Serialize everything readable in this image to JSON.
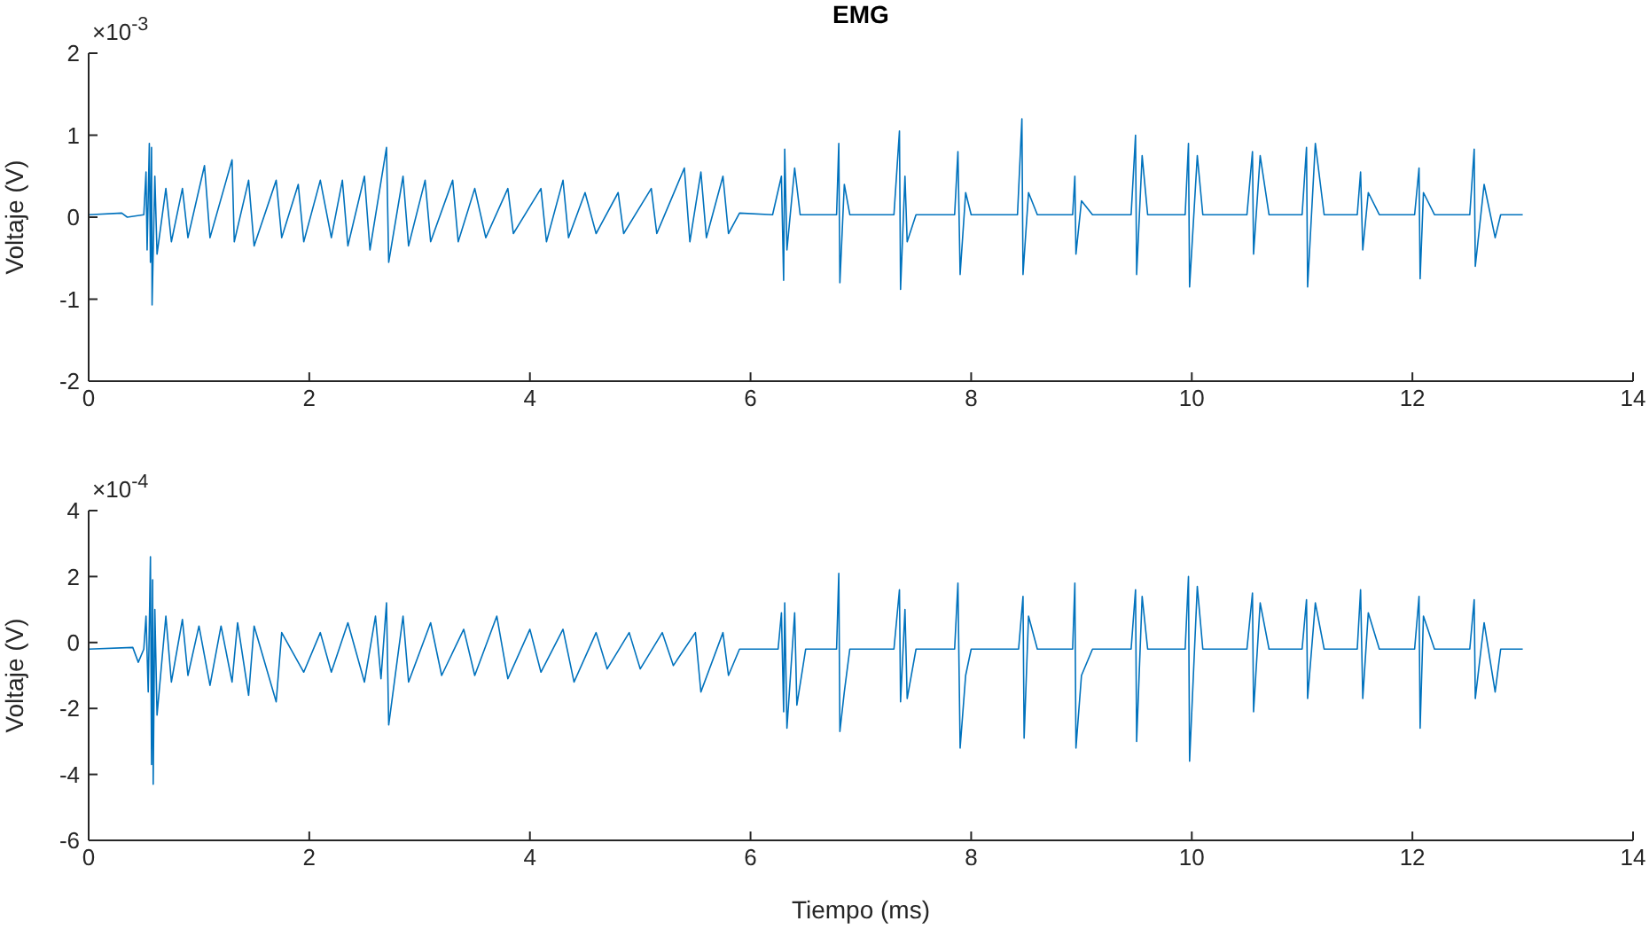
{
  "chart_data": [
    {
      "type": "line",
      "title": "EMG",
      "ylabel": "Voltaje (V)",
      "annotations": [
        "×10$^{-3}$"
      ],
      "xlim": [
        0,
        14
      ],
      "xticks": [
        0,
        2,
        4,
        6,
        8,
        10,
        12,
        14
      ],
      "ylim": [
        -2,
        2
      ],
      "yticks": [
        -2,
        -1,
        0,
        1,
        2
      ],
      "marker": "none",
      "series": [
        {
          "color": "#0072bd",
          "x": [
            0,
            0.3,
            0.35,
            0.5,
            0.52,
            0.53,
            0.55,
            0.56,
            0.57,
            0.575,
            0.6,
            0.62,
            0.7,
            0.75,
            0.85,
            0.9,
            1.05,
            1.1,
            1.3,
            1.32,
            1.45,
            1.5,
            1.7,
            1.75,
            1.9,
            1.95,
            2.1,
            2.2,
            2.3,
            2.35,
            2.5,
            2.55,
            2.7,
            2.72,
            2.85,
            2.9,
            3.05,
            3.1,
            3.3,
            3.35,
            3.5,
            3.6,
            3.8,
            3.85,
            4.1,
            4.15,
            4.3,
            4.35,
            4.5,
            4.6,
            4.8,
            4.85,
            5.1,
            5.15,
            5.4,
            5.45,
            5.55,
            5.6,
            5.75,
            5.8,
            5.9,
            6.2,
            6.28,
            6.3,
            6.31,
            6.33,
            6.4,
            6.45,
            6.78,
            6.8,
            6.81,
            6.85,
            6.9,
            7.3,
            7.35,
            7.36,
            7.4,
            7.42,
            7.5,
            7.85,
            7.88,
            7.9,
            7.95,
            8.0,
            8.42,
            8.46,
            8.47,
            8.52,
            8.6,
            8.92,
            8.94,
            8.95,
            9.0,
            9.1,
            9.45,
            9.49,
            9.5,
            9.55,
            9.6,
            9.94,
            9.97,
            9.98,
            10.05,
            10.1,
            10.5,
            10.55,
            10.56,
            10.62,
            10.7,
            11.0,
            11.04,
            11.05,
            11.12,
            11.2,
            11.5,
            11.53,
            11.55,
            11.6,
            11.7,
            12.02,
            12.06,
            12.07,
            12.1,
            12.2,
            12.52,
            12.56,
            12.57,
            12.65,
            12.75,
            12.8,
            13.0
          ],
          "values": [
            0.03,
            0.05,
            0.0,
            0.03,
            0.55,
            -0.4,
            0.9,
            -0.55,
            0.85,
            -1.07,
            0.5,
            -0.45,
            0.35,
            -0.3,
            0.35,
            -0.25,
            0.63,
            -0.25,
            0.7,
            -0.3,
            0.45,
            -0.35,
            0.45,
            -0.25,
            0.4,
            -0.3,
            0.45,
            -0.25,
            0.45,
            -0.35,
            0.5,
            -0.4,
            0.85,
            -0.55,
            0.5,
            -0.35,
            0.45,
            -0.3,
            0.45,
            -0.3,
            0.35,
            -0.25,
            0.35,
            -0.2,
            0.35,
            -0.3,
            0.45,
            -0.25,
            0.3,
            -0.2,
            0.3,
            -0.2,
            0.35,
            -0.2,
            0.6,
            -0.3,
            0.55,
            -0.25,
            0.5,
            -0.2,
            0.05,
            0.03,
            0.5,
            -0.77,
            0.83,
            -0.4,
            0.6,
            0.03,
            0.03,
            0.9,
            -0.8,
            0.4,
            0.03,
            0.03,
            1.05,
            -0.88,
            0.5,
            -0.3,
            0.03,
            0.03,
            0.8,
            -0.7,
            0.3,
            0.03,
            0.03,
            1.2,
            -0.7,
            0.3,
            0.03,
            0.03,
            0.5,
            -0.45,
            0.2,
            0.03,
            0.03,
            1.0,
            -0.7,
            0.75,
            0.03,
            0.03,
            0.9,
            -0.85,
            0.75,
            0.03,
            0.03,
            0.8,
            -0.45,
            0.75,
            0.03,
            0.03,
            0.85,
            -0.85,
            0.9,
            0.03,
            0.03,
            0.55,
            -0.4,
            0.3,
            0.03,
            0.03,
            0.6,
            -0.75,
            0.3,
            0.03,
            0.03,
            0.83,
            -0.6,
            0.4,
            -0.25,
            0.03,
            0.03
          ]
        }
      ]
    },
    {
      "type": "line",
      "xlabel": "Tiempo (ms)",
      "ylabel": "Voltaje (V)",
      "annotations": [
        "×10$^{-4}$"
      ],
      "xlim": [
        0,
        14
      ],
      "xticks": [
        0,
        2,
        4,
        6,
        8,
        10,
        12,
        14
      ],
      "ylim": [
        -6,
        4
      ],
      "yticks": [
        -6,
        -4,
        -2,
        0,
        2,
        4
      ],
      "marker": "none",
      "series": [
        {
          "color": "#0072bd",
          "x": [
            0,
            0.4,
            0.45,
            0.5,
            0.52,
            0.54,
            0.56,
            0.57,
            0.58,
            0.585,
            0.6,
            0.62,
            0.7,
            0.75,
            0.85,
            0.9,
            1.0,
            1.1,
            1.2,
            1.3,
            1.35,
            1.45,
            1.5,
            1.7,
            1.75,
            1.95,
            2.1,
            2.2,
            2.35,
            2.5,
            2.6,
            2.65,
            2.7,
            2.72,
            2.85,
            2.9,
            3.1,
            3.2,
            3.4,
            3.5,
            3.7,
            3.8,
            4.0,
            4.1,
            4.3,
            4.4,
            4.6,
            4.7,
            4.9,
            5.0,
            5.2,
            5.3,
            5.5,
            5.55,
            5.75,
            5.8,
            5.9,
            6.25,
            6.28,
            6.3,
            6.31,
            6.33,
            6.4,
            6.42,
            6.5,
            6.78,
            6.8,
            6.81,
            6.85,
            6.9,
            7.3,
            7.35,
            7.36,
            7.4,
            7.42,
            7.5,
            7.85,
            7.88,
            7.9,
            7.95,
            8.0,
            8.43,
            8.47,
            8.48,
            8.52,
            8.6,
            8.92,
            8.94,
            8.95,
            9.0,
            9.1,
            9.45,
            9.49,
            9.5,
            9.55,
            9.6,
            9.94,
            9.97,
            9.98,
            10.05,
            10.1,
            10.5,
            10.55,
            10.56,
            10.62,
            10.7,
            11.0,
            11.04,
            11.05,
            11.12,
            11.2,
            11.5,
            11.53,
            11.55,
            11.6,
            11.7,
            12.02,
            12.06,
            12.07,
            12.1,
            12.2,
            12.52,
            12.56,
            12.57,
            12.65,
            12.75,
            12.8,
            13.0
          ],
          "values": [
            -0.2,
            -0.15,
            -0.6,
            -0.2,
            0.8,
            -1.5,
            2.6,
            -3.7,
            1.9,
            -4.3,
            1.0,
            -2.2,
            0.8,
            -1.2,
            0.7,
            -1.0,
            0.5,
            -1.3,
            0.5,
            -1.2,
            0.6,
            -1.6,
            0.5,
            -1.8,
            0.3,
            -0.9,
            0.3,
            -0.9,
            0.6,
            -1.2,
            0.8,
            -1.1,
            1.2,
            -2.5,
            0.8,
            -1.2,
            0.6,
            -1.0,
            0.4,
            -1.0,
            0.8,
            -1.1,
            0.4,
            -0.9,
            0.4,
            -1.2,
            0.3,
            -0.8,
            0.3,
            -0.8,
            0.3,
            -0.7,
            0.3,
            -1.5,
            0.3,
            -1.0,
            -0.2,
            -0.2,
            0.9,
            -2.1,
            1.2,
            -2.6,
            0.9,
            -1.9,
            -0.2,
            -0.2,
            2.1,
            -2.7,
            -1.5,
            -0.2,
            -0.2,
            1.6,
            -1.8,
            1.0,
            -1.7,
            -0.2,
            -0.2,
            1.8,
            -3.2,
            -1.0,
            -0.2,
            -0.2,
            1.4,
            -2.9,
            0.8,
            -0.2,
            -0.2,
            1.8,
            -3.2,
            -1.0,
            -0.2,
            -0.2,
            1.6,
            -3.0,
            1.4,
            -0.2,
            -0.2,
            2.0,
            -3.6,
            1.7,
            -0.2,
            -0.2,
            1.5,
            -2.1,
            1.2,
            -0.2,
            -0.2,
            1.3,
            -1.7,
            1.2,
            -0.2,
            -0.2,
            1.6,
            -1.7,
            0.9,
            -0.2,
            -0.2,
            1.4,
            -2.6,
            0.8,
            -0.2,
            -0.2,
            1.3,
            -1.7,
            0.6,
            -1.5,
            -0.2,
            -0.2
          ]
        }
      ]
    }
  ]
}
